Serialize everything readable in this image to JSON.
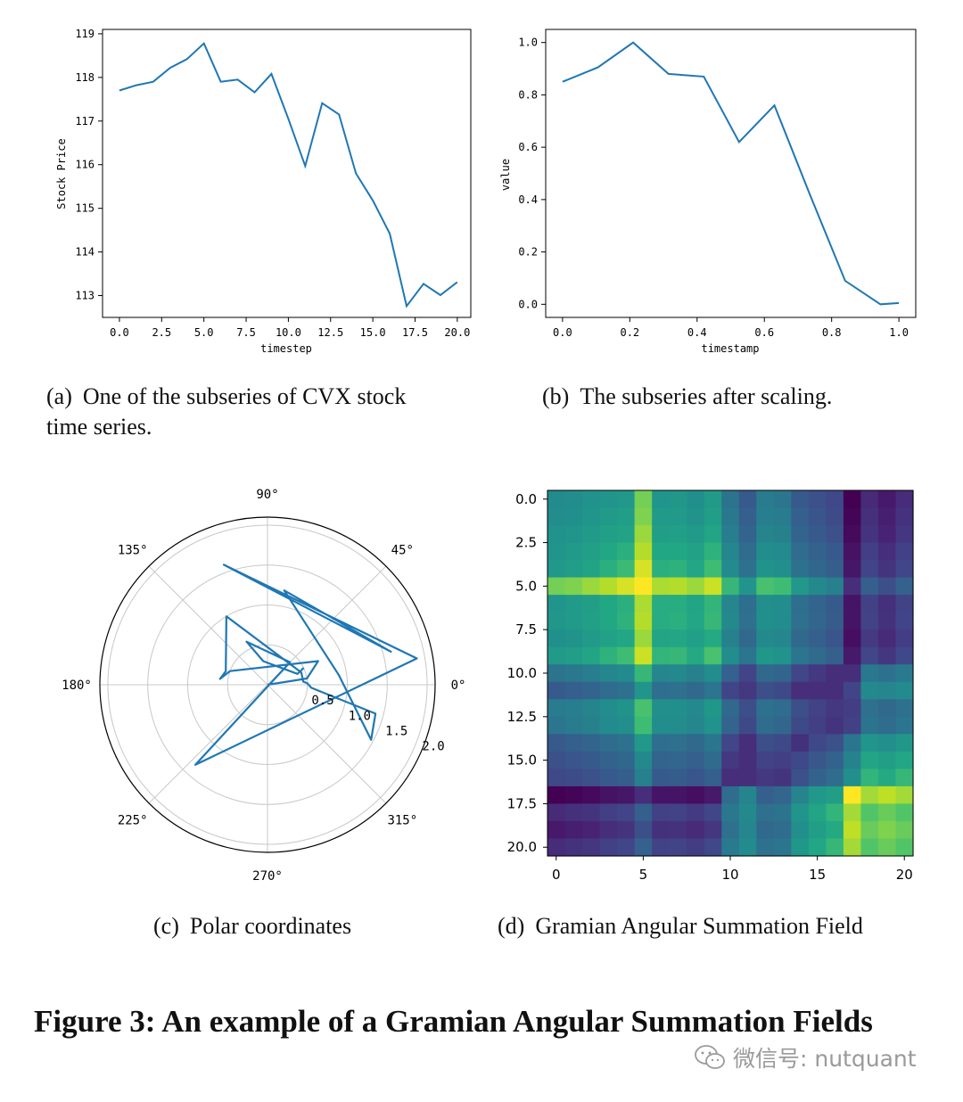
{
  "chart_data": [
    {
      "type": "line",
      "xlabel": "timestep",
      "ylabel": "Stock Price",
      "xlim": [
        -1,
        20.8
      ],
      "ylim": [
        112.5,
        119.1
      ],
      "xticks": [
        "0.0",
        "2.5",
        "5.0",
        "7.5",
        "10.0",
        "12.5",
        "15.0",
        "17.5",
        "20.0"
      ],
      "yticks": [
        "113",
        "114",
        "115",
        "116",
        "117",
        "118",
        "119"
      ],
      "series": [
        {
          "x": [
            0,
            1,
            2,
            3,
            4,
            5,
            6,
            7,
            8,
            9,
            10,
            11,
            12,
            13,
            14,
            15,
            16,
            17,
            18,
            19,
            20
          ],
          "y": [
            117.7,
            117.82,
            117.9,
            118.22,
            118.42,
            118.78,
            117.9,
            117.95,
            117.66,
            118.08,
            117.05,
            115.97,
            117.41,
            117.15,
            115.8,
            115.18,
            114.42,
            112.76,
            113.27,
            113.01,
            113.31
          ]
        }
      ],
      "color": "#1f77b4"
    },
    {
      "type": "line",
      "xlabel": "timestamp",
      "ylabel": "value",
      "xlim": [
        -0.05,
        1.05
      ],
      "ylim": [
        -0.05,
        1.05
      ],
      "xticks": [
        "0.0",
        "0.2",
        "0.4",
        "0.6",
        "0.8",
        "1.0"
      ],
      "yticks": [
        "0.0",
        "0.2",
        "0.4",
        "0.6",
        "0.8",
        "1.0"
      ],
      "series": [
        {
          "x": [
            0,
            0.105,
            0.21,
            0.315,
            0.42,
            0.525,
            0.63,
            0.735,
            0.84,
            0.945,
            1.0
          ],
          "y": [
            0.85,
            0.905,
            1.0,
            0.88,
            0.87,
            0.62,
            0.76,
            0.42,
            0.09,
            0.0,
            0.005
          ]
        }
      ],
      "color": "#1f77b4"
    },
    {
      "type": "line",
      "subtype": "polar",
      "rmax": 2.1,
      "angle_labels": [
        "0°",
        "45°",
        "90°",
        "135°",
        "180°",
        "225°",
        "270°",
        "315°"
      ],
      "radial_labels": [
        "0.5",
        "1.0",
        "1.5",
        "2.0"
      ],
      "series": [
        {
          "theta_deg": [
            0,
            9,
            25,
            160,
            173,
            162,
            121,
            20,
            5,
            2,
            356,
            345,
            332,
            8,
            80,
            15,
            110,
            10,
            228,
            45,
            116,
            100,
            20,
            25
          ],
          "r": [
            0,
            0.5,
            0.7,
            0.5,
            0.6,
            0.55,
            1.0,
            0.45,
            0.45,
            0.5,
            0.55,
            1.4,
            1.47,
            0.9,
            1.2,
            1.6,
            1.6,
            1.9,
            1.35,
            0.4,
            0.6,
            0.3,
            0.4,
            0.5
          ]
        }
      ],
      "color": "#1f77b4"
    },
    {
      "type": "heatmap",
      "colormap": "viridis",
      "xticks": [
        "0",
        "5",
        "10",
        "15",
        "20"
      ],
      "yticks": [
        "0.0",
        "2.5",
        "5.0",
        "7.5",
        "10.0",
        "12.5",
        "15.0",
        "17.5",
        "20.0"
      ],
      "values": [
        [
          0.49,
          0.51,
          0.54,
          0.56,
          0.58,
          0.86,
          0.56,
          0.57,
          0.53,
          0.59,
          0.34,
          0.19,
          0.39,
          0.36,
          0.19,
          0.13,
          0.08,
          -0.26,
          -0.07,
          -0.15,
          -0.06
        ],
        [
          0.51,
          0.53,
          0.56,
          0.59,
          0.61,
          0.88,
          0.59,
          0.59,
          0.55,
          0.61,
          0.37,
          0.22,
          0.41,
          0.39,
          0.22,
          0.16,
          0.1,
          -0.24,
          -0.04,
          -0.12,
          -0.03
        ],
        [
          0.54,
          0.56,
          0.59,
          0.63,
          0.65,
          0.91,
          0.62,
          0.63,
          0.59,
          0.66,
          0.4,
          0.25,
          0.45,
          0.43,
          0.25,
          0.19,
          0.13,
          -0.22,
          -0.02,
          -0.1,
          -0.01
        ],
        [
          0.56,
          0.59,
          0.63,
          0.68,
          0.71,
          0.94,
          0.68,
          0.68,
          0.64,
          0.72,
          0.46,
          0.3,
          0.51,
          0.49,
          0.3,
          0.24,
          0.18,
          -0.18,
          0.03,
          -0.05,
          0.04
        ],
        [
          0.58,
          0.61,
          0.65,
          0.71,
          0.75,
          0.97,
          0.71,
          0.72,
          0.67,
          0.76,
          0.49,
          0.33,
          0.55,
          0.52,
          0.33,
          0.27,
          0.21,
          -0.16,
          0.06,
          -0.02,
          0.07
        ],
        [
          0.86,
          0.88,
          0.91,
          0.94,
          0.97,
          1.0,
          0.93,
          0.94,
          0.91,
          0.96,
          0.74,
          0.56,
          0.78,
          0.76,
          0.58,
          0.48,
          0.42,
          -0.05,
          0.22,
          0.12,
          0.23
        ],
        [
          0.56,
          0.59,
          0.62,
          0.68,
          0.71,
          0.93,
          0.7,
          0.7,
          0.66,
          0.73,
          0.47,
          0.31,
          0.52,
          0.5,
          0.31,
          0.25,
          0.19,
          -0.17,
          0.04,
          -0.04,
          0.05
        ],
        [
          0.57,
          0.59,
          0.63,
          0.68,
          0.72,
          0.94,
          0.7,
          0.71,
          0.67,
          0.74,
          0.48,
          0.32,
          0.53,
          0.51,
          0.32,
          0.26,
          0.2,
          -0.17,
          0.05,
          -0.03,
          0.06
        ],
        [
          0.53,
          0.55,
          0.59,
          0.64,
          0.67,
          0.91,
          0.66,
          0.67,
          0.63,
          0.69,
          0.43,
          0.28,
          0.48,
          0.46,
          0.28,
          0.22,
          0.16,
          -0.2,
          0.01,
          -0.07,
          0.02
        ],
        [
          0.59,
          0.61,
          0.66,
          0.72,
          0.76,
          0.96,
          0.73,
          0.74,
          0.69,
          0.78,
          0.51,
          0.35,
          0.57,
          0.54,
          0.35,
          0.29,
          0.22,
          -0.15,
          0.07,
          -0.01,
          0.08
        ],
        [
          0.34,
          0.37,
          0.4,
          0.46,
          0.49,
          0.74,
          0.47,
          0.48,
          0.43,
          0.51,
          0.23,
          0.06,
          0.28,
          0.25,
          0.07,
          0.0,
          -0.05,
          -0.05,
          0.37,
          0.33,
          0.38
        ],
        [
          0.19,
          0.22,
          0.25,
          0.3,
          0.33,
          0.56,
          0.31,
          0.32,
          0.28,
          0.35,
          0.06,
          0.0,
          0.12,
          0.09,
          -0.05,
          -0.05,
          -0.05,
          0.06,
          0.48,
          0.46,
          0.49
        ],
        [
          0.39,
          0.41,
          0.45,
          0.51,
          0.55,
          0.78,
          0.52,
          0.53,
          0.48,
          0.57,
          0.28,
          0.12,
          0.33,
          0.3,
          0.12,
          0.05,
          0.0,
          0.02,
          0.32,
          0.28,
          0.33
        ],
        [
          0.36,
          0.39,
          0.43,
          0.49,
          0.52,
          0.76,
          0.5,
          0.51,
          0.46,
          0.54,
          0.25,
          0.09,
          0.3,
          0.27,
          0.09,
          0.03,
          -0.02,
          0.04,
          0.34,
          0.3,
          0.35
        ],
        [
          0.19,
          0.22,
          0.25,
          0.3,
          0.33,
          0.58,
          0.31,
          0.32,
          0.28,
          0.35,
          0.07,
          -0.05,
          0.12,
          0.09,
          -0.04,
          0.08,
          0.13,
          0.35,
          0.56,
          0.52,
          0.57
        ],
        [
          0.13,
          0.16,
          0.19,
          0.24,
          0.27,
          0.48,
          0.25,
          0.26,
          0.22,
          0.29,
          0.0,
          -0.05,
          0.05,
          0.03,
          0.08,
          0.17,
          0.24,
          0.44,
          0.66,
          0.62,
          0.67
        ],
        [
          0.08,
          0.1,
          0.13,
          0.18,
          0.21,
          0.42,
          0.19,
          0.2,
          0.16,
          0.22,
          -0.05,
          -0.05,
          0.0,
          -0.02,
          0.13,
          0.24,
          0.3,
          0.52,
          0.73,
          0.69,
          0.74
        ],
        [
          -0.26,
          -0.24,
          -0.22,
          -0.18,
          -0.16,
          -0.05,
          -0.17,
          -0.17,
          -0.2,
          -0.15,
          0.3,
          0.45,
          0.22,
          0.26,
          0.45,
          0.58,
          0.62,
          1.0,
          0.92,
          0.95,
          0.92
        ],
        [
          -0.07,
          -0.04,
          -0.02,
          0.03,
          0.06,
          0.22,
          0.04,
          0.05,
          0.01,
          0.07,
          0.37,
          0.48,
          0.32,
          0.34,
          0.56,
          0.66,
          0.73,
          0.92,
          0.8,
          0.84,
          0.8
        ],
        [
          -0.15,
          -0.12,
          -0.1,
          -0.05,
          -0.02,
          0.12,
          -0.04,
          -0.03,
          -0.07,
          -0.01,
          0.33,
          0.46,
          0.28,
          0.3,
          0.52,
          0.62,
          0.69,
          0.95,
          0.84,
          0.88,
          0.84
        ],
        [
          -0.06,
          -0.03,
          -0.01,
          0.04,
          0.07,
          0.23,
          0.05,
          0.06,
          0.02,
          0.08,
          0.38,
          0.49,
          0.33,
          0.35,
          0.57,
          0.67,
          0.74,
          0.92,
          0.8,
          0.84,
          0.8
        ]
      ]
    }
  ],
  "captions": {
    "a_label": "(a)",
    "a_text_line1": "One of the subseries of CVX stock",
    "a_text_line2": "time series.",
    "b_label": "(b)",
    "b_text": "The subseries after scaling.",
    "c_label": "(c)",
    "c_text": "Polar coordinates",
    "d_label": "(d)",
    "d_text": "Gramian Angular Summation Field"
  },
  "figure_title": "Figure 3: An example of a Gramian Angular Summation Fields",
  "watermark": {
    "text": "微信号: nutquant",
    "icon": "wechat-icon"
  }
}
